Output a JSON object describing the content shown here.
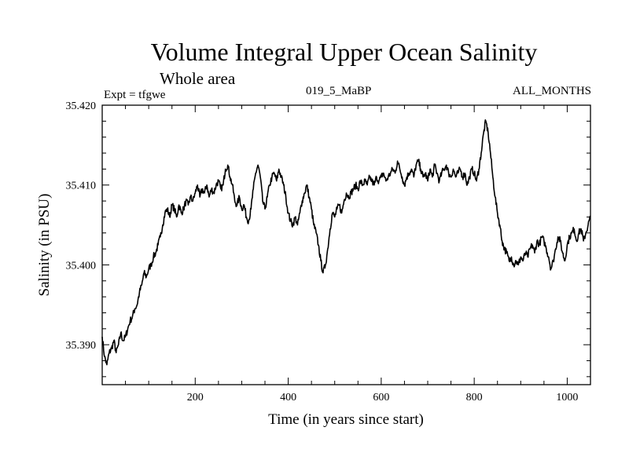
{
  "chart_data": {
    "type": "line",
    "title": "Volume Integral Upper Ocean Salinity",
    "subtitle": "Whole area",
    "experiment_label": "Expt = tfgwe",
    "run_label": "019_5_MaBP",
    "months_label": "ALL_MONTHS",
    "xlabel": "Time (in years since start)",
    "ylabel": "Salinity (in PSU)",
    "xlim": [
      0,
      1050
    ],
    "ylim": [
      35.385,
      35.42
    ],
    "xticks": [
      200,
      400,
      600,
      800,
      1000
    ],
    "xtick_labels": [
      "200",
      "400",
      "600",
      "800",
      "1000"
    ],
    "yticks": [
      35.39,
      35.4,
      35.41,
      35.42
    ],
    "ytick_labels": [
      "35.390",
      "35.400",
      "35.410",
      "35.420"
    ],
    "series": [
      {
        "name": "salinity",
        "x": [
          0,
          5,
          10,
          15,
          20,
          25,
          30,
          35,
          40,
          45,
          50,
          55,
          60,
          65,
          70,
          75,
          80,
          85,
          90,
          95,
          100,
          105,
          110,
          115,
          120,
          125,
          130,
          135,
          140,
          145,
          150,
          155,
          160,
          165,
          170,
          175,
          180,
          185,
          190,
          195,
          200,
          205,
          210,
          215,
          220,
          225,
          230,
          235,
          240,
          245,
          250,
          255,
          260,
          265,
          270,
          275,
          280,
          285,
          290,
          295,
          300,
          305,
          310,
          315,
          320,
          325,
          330,
          335,
          340,
          345,
          350,
          355,
          360,
          365,
          370,
          375,
          380,
          385,
          390,
          395,
          400,
          405,
          410,
          415,
          420,
          425,
          430,
          435,
          440,
          445,
          450,
          455,
          460,
          465,
          470,
          475,
          480,
          485,
          490,
          495,
          500,
          505,
          510,
          515,
          520,
          525,
          530,
          535,
          540,
          545,
          550,
          555,
          560,
          565,
          570,
          575,
          580,
          585,
          590,
          595,
          600,
          605,
          610,
          615,
          620,
          625,
          630,
          635,
          640,
          645,
          650,
          655,
          660,
          665,
          670,
          675,
          680,
          685,
          690,
          695,
          700,
          705,
          710,
          715,
          720,
          725,
          730,
          735,
          740,
          745,
          750,
          755,
          760,
          765,
          770,
          775,
          780,
          785,
          790,
          795,
          800,
          805,
          810,
          815,
          820,
          825,
          830,
          835,
          840,
          845,
          850,
          855,
          860,
          865,
          870,
          875,
          880,
          885,
          890,
          895,
          900,
          905,
          910,
          915,
          920,
          925,
          930,
          935,
          940,
          945,
          950,
          955,
          960,
          965,
          970,
          975,
          980,
          985,
          990,
          995,
          1000,
          1005,
          1010,
          1015,
          1020,
          1025,
          1030,
          1035,
          1040,
          1045,
          1050
        ],
        "values": [
          35.391,
          35.3885,
          35.3875,
          35.389,
          35.3895,
          35.3905,
          35.389,
          35.39,
          35.3915,
          35.3905,
          35.391,
          35.392,
          35.393,
          35.3935,
          35.3945,
          35.395,
          35.3965,
          35.3975,
          35.399,
          35.3985,
          35.3995,
          35.4,
          35.401,
          35.4015,
          35.4025,
          35.4035,
          35.405,
          35.4065,
          35.407,
          35.406,
          35.4075,
          35.407,
          35.406,
          35.4075,
          35.4065,
          35.407,
          35.408,
          35.4075,
          35.4085,
          35.408,
          35.409,
          35.41,
          35.4085,
          35.4095,
          35.409,
          35.41,
          35.4085,
          35.4095,
          35.409,
          35.41,
          35.4105,
          35.4095,
          35.41,
          35.412,
          35.4125,
          35.411,
          35.41,
          35.408,
          35.4075,
          35.4085,
          35.407,
          35.4075,
          35.406,
          35.4055,
          35.407,
          35.4095,
          35.4115,
          35.4125,
          35.411,
          35.408,
          35.407,
          35.4085,
          35.41,
          35.411,
          35.4115,
          35.4105,
          35.412,
          35.411,
          35.41,
          35.4085,
          35.4065,
          35.4055,
          35.405,
          35.406,
          35.405,
          35.4065,
          35.408,
          35.409,
          35.41,
          35.4085,
          35.407,
          35.405,
          35.404,
          35.4025,
          35.4005,
          35.399,
          35.4,
          35.402,
          35.4045,
          35.4065,
          35.406,
          35.407,
          35.4075,
          35.4065,
          35.408,
          35.409,
          35.4085,
          35.409,
          35.4095,
          35.41,
          35.4095,
          35.4105,
          35.41,
          35.4105,
          35.41,
          35.411,
          35.4105,
          35.41,
          35.411,
          35.4105,
          35.411,
          35.4115,
          35.4105,
          35.411,
          35.4115,
          35.412,
          35.4115,
          35.413,
          35.412,
          35.411,
          35.41,
          35.411,
          35.4115,
          35.412,
          35.411,
          35.4125,
          35.413,
          35.412,
          35.411,
          35.4115,
          35.4105,
          35.412,
          35.411,
          35.4125,
          35.4115,
          35.4105,
          35.4115,
          35.412,
          35.4125,
          35.4115,
          35.411,
          35.412,
          35.411,
          35.4115,
          35.412,
          35.411,
          35.4115,
          35.41,
          35.411,
          35.412,
          35.4115,
          35.4105,
          35.412,
          35.414,
          35.4165,
          35.418,
          35.4165,
          35.414,
          35.411,
          35.4085,
          35.4065,
          35.405,
          35.403,
          35.402,
          35.4015,
          35.4005,
          35.401,
          35.4,
          35.4005,
          35.4,
          35.401,
          35.4005,
          35.4015,
          35.401,
          35.402,
          35.4025,
          35.4015,
          35.403,
          35.4025,
          35.4035,
          35.403,
          35.402,
          35.401,
          35.3995,
          35.4005,
          35.402,
          35.4035,
          35.403,
          35.4015,
          35.4005,
          35.4025,
          35.4035,
          35.404,
          35.4045,
          35.403,
          35.404,
          35.4045,
          35.403,
          35.404,
          35.405,
          35.406
        ]
      }
    ]
  }
}
